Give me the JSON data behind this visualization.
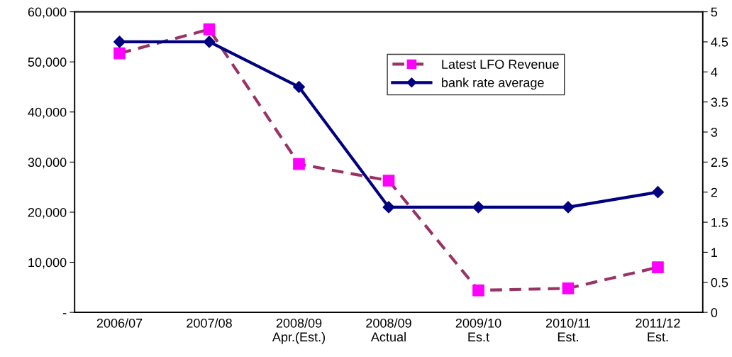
{
  "chart_data": {
    "type": "line",
    "categories": [
      "2006/07",
      "2007/08",
      "2008/09\nApr.(Est.)",
      "2008/09\nActual",
      "2009/10\nEs.t",
      "2010/11\nEst.",
      "2011/12\nEst."
    ],
    "series": [
      {
        "name": "Latest LFO Revenue",
        "color": "#993366",
        "colors": [
          "#ff00ff",
          "#ff00ff",
          "#ff00ff",
          "#ff00ff",
          "#ff00ff",
          "#ff00ff",
          "#ff00ff"
        ],
        "marker": "square",
        "line_style": "dashed",
        "values": [
          51700,
          56500,
          29600,
          26300,
          4400,
          4800,
          9000
        ]
      },
      {
        "name": "bank rate average",
        "color": "#000080",
        "marker": "diamond",
        "line_style": "solid",
        "axis": "y2",
        "values": [
          4.5,
          4.5,
          3.75,
          1.75,
          1.75,
          1.75,
          2.0
        ]
      }
    ],
    "ylim": [
      0,
      60000
    ],
    "yticks": [
      {
        "value": 0,
        "label": "-"
      },
      {
        "value": 10000,
        "label": "10,000"
      },
      {
        "value": 20000,
        "label": "20,000"
      },
      {
        "value": 30000,
        "label": "30,000"
      },
      {
        "value": 40000,
        "label": "40,000"
      },
      {
        "value": 50000,
        "label": "50,000"
      },
      {
        "value": 60000,
        "label": "60,000"
      }
    ],
    "y2lim": [
      0,
      5
    ],
    "y2ticks": [
      0,
      0.5,
      1,
      1.5,
      2,
      2.5,
      3,
      3.5,
      4,
      4.5,
      5
    ],
    "grid": false,
    "legend": "top right"
  }
}
